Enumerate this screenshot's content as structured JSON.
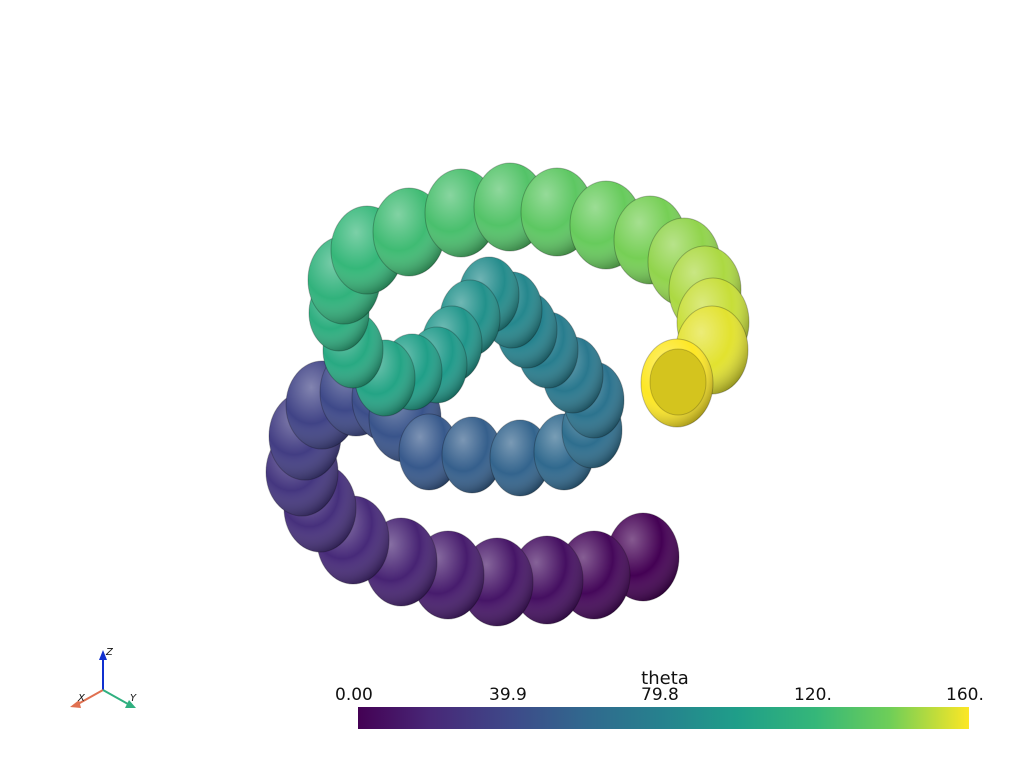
{
  "scene": {
    "name": "helical glyph plot",
    "colors": {
      "background": "#ffffff"
    }
  },
  "scalar_bar": {
    "title": "theta",
    "ticks": [
      "0.00",
      "39.9",
      "79.8",
      "120.",
      "160."
    ],
    "range": [
      0,
      160
    ],
    "colormap": "viridis",
    "colors": [
      "#440154",
      "#3b528b",
      "#21918c",
      "#5ec962",
      "#fde725"
    ]
  },
  "axes_widget": {
    "x_label": "X",
    "y_label": "Y",
    "z_label": "Z",
    "x_color": "#e07050",
    "y_color": "#30b080",
    "z_color": "#1030d0"
  }
}
